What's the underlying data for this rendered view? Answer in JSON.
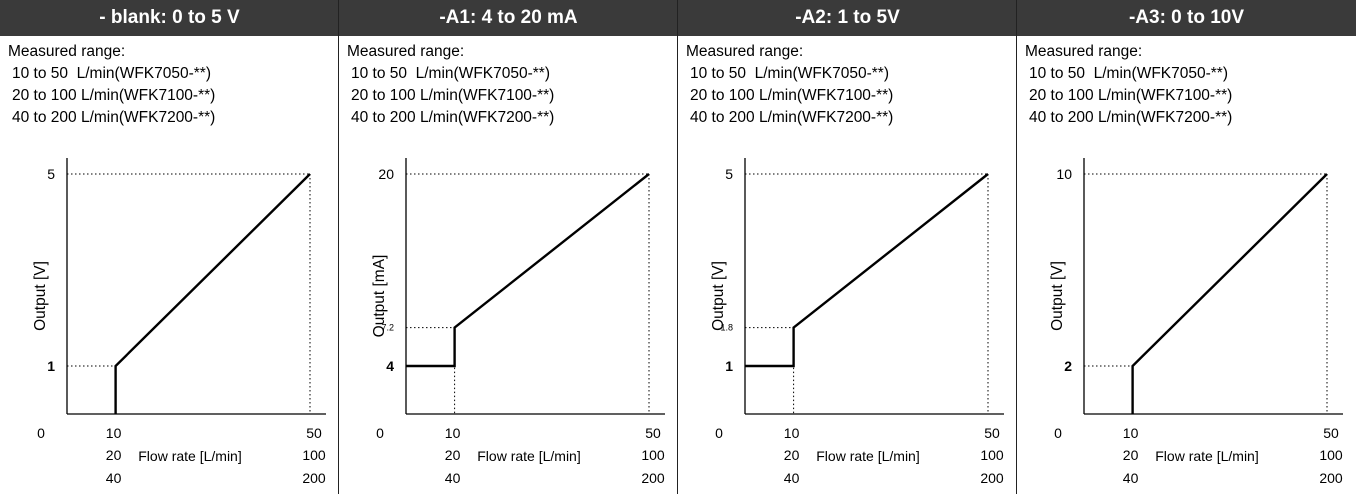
{
  "chart_data": [
    {
      "type": "line",
      "title": "- blank: 0 to 5 V",
      "range_title": "Measured range:",
      "ranges": [
        "10 to 50  L/min(WFK7050-**)",
        "20 to 100 L/min(WFK7100-**)",
        "40 to 200 L/min(WFK7200-**)"
      ],
      "ylabel": "Output [V]",
      "xlabel": "Flow rate [L/min]",
      "x_origin_label": "0",
      "x_rows": [
        [
          "10",
          "50"
        ],
        [
          "20",
          "100"
        ],
        [
          "40",
          "200"
        ]
      ],
      "y_top_label": "5",
      "y_low_label": "1",
      "y_low_bold": true,
      "y_step_label": "",
      "xlim": [
        0,
        50
      ],
      "ylim": [
        0,
        5
      ],
      "series": [
        {
          "x": [
            10,
            10,
            50
          ],
          "y": [
            0,
            1,
            5
          ]
        }
      ],
      "dashed": {
        "top": 5,
        "top_x": 50,
        "low": 1,
        "low_x": 10
      }
    },
    {
      "type": "line",
      "title": "-A1: 4 to 20 mA",
      "range_title": "Measured range:",
      "ranges": [
        "10 to 50  L/min(WFK7050-**)",
        "20 to 100 L/min(WFK7100-**)",
        "40 to 200 L/min(WFK7200-**)"
      ],
      "ylabel": "Output [mA]",
      "xlabel": "Flow rate [L/min]",
      "x_origin_label": "0",
      "x_rows": [
        [
          "10",
          "50"
        ],
        [
          "20",
          "100"
        ],
        [
          "40",
          "200"
        ]
      ],
      "y_top_label": "20",
      "y_low_label": "4",
      "y_low_bold": true,
      "y_step_label": "7.2",
      "xlim": [
        0,
        50
      ],
      "ylim": [
        0,
        20
      ],
      "series": [
        {
          "x": [
            0,
            10,
            10,
            50
          ],
          "y": [
            4,
            4,
            7.2,
            20
          ]
        }
      ],
      "dashed": {
        "top": 20,
        "top_x": 50,
        "low": 7.2,
        "low_x": 10
      }
    },
    {
      "type": "line",
      "title": "-A2: 1 to 5V",
      "range_title": "Measured range:",
      "ranges": [
        "10 to 50  L/min(WFK7050-**)",
        "20 to 100 L/min(WFK7100-**)",
        "40 to 200 L/min(WFK7200-**)"
      ],
      "ylabel": "Output [V]",
      "xlabel": "Flow rate [L/min]",
      "x_origin_label": "0",
      "x_rows": [
        [
          "10",
          "50"
        ],
        [
          "20",
          "100"
        ],
        [
          "40",
          "200"
        ]
      ],
      "y_top_label": "5",
      "y_low_label": "1",
      "y_low_bold": true,
      "y_step_label": "1.8",
      "xlim": [
        0,
        50
      ],
      "ylim": [
        0,
        5
      ],
      "series": [
        {
          "x": [
            0,
            10,
            10,
            50
          ],
          "y": [
            1,
            1,
            1.8,
            5
          ]
        }
      ],
      "dashed": {
        "top": 5,
        "top_x": 50,
        "low": 1.8,
        "low_x": 10
      }
    },
    {
      "type": "line",
      "title": "-A3: 0 to 10V",
      "range_title": "Measured range:",
      "ranges": [
        "10 to 50  L/min(WFK7050-**)",
        "20 to 100 L/min(WFK7100-**)",
        "40 to 200 L/min(WFK7200-**)"
      ],
      "ylabel": "Output [V]",
      "xlabel": "Flow rate [L/min]",
      "x_origin_label": "0",
      "x_rows": [
        [
          "10",
          "50"
        ],
        [
          "20",
          "100"
        ],
        [
          "40",
          "200"
        ]
      ],
      "y_top_label": "10",
      "y_low_label": "2",
      "y_low_bold": true,
      "y_step_label": "",
      "xlim": [
        0,
        50
      ],
      "ylim": [
        0,
        10
      ],
      "series": [
        {
          "x": [
            10,
            10,
            50
          ],
          "y": [
            0,
            2,
            10
          ]
        }
      ],
      "dashed": {
        "top": 10,
        "top_x": 50,
        "low": 2,
        "low_x": 10
      }
    }
  ]
}
